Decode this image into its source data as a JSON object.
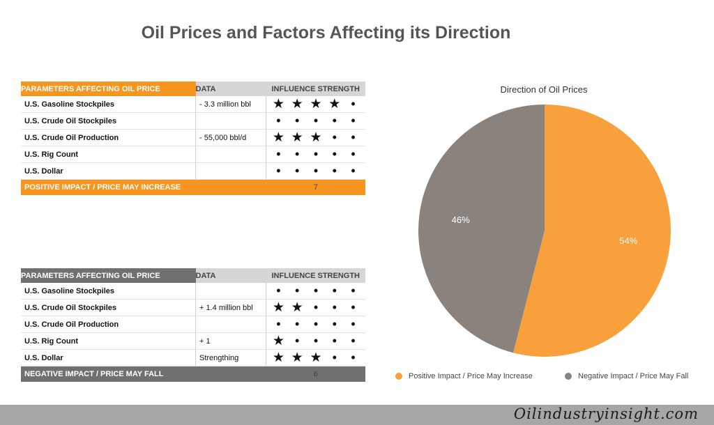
{
  "title": "Oil Prices and Factors Affecting its Direction",
  "positive_table": {
    "headers": [
      "PARAMETERS AFFECTING OIL PRICE",
      "DATA",
      "INFLUENCE STRENGTH"
    ],
    "rows": [
      {
        "param": "U.S. Gasoline Stockpiles",
        "data": "- 3.3 million bbl",
        "strength": 4
      },
      {
        "param": "U.S. Crude Oil Stockpiles",
        "data": "",
        "strength": 0
      },
      {
        "param": "U.S. Crude Oil Production",
        "data": "- 55,000 bbl/d",
        "strength": 3
      },
      {
        "param": "U.S. Rig Count",
        "data": "",
        "strength": 0
      },
      {
        "param": "U.S. Dollar",
        "data": "",
        "strength": 0
      }
    ],
    "footer_label": "POSITIVE IMPACT / PRICE MAY INCREASE",
    "footer_total": "7"
  },
  "negative_table": {
    "headers": [
      "PARAMETERS AFFECTING OIL PRICE",
      "DATA",
      "INFLUENCE STRENGTH"
    ],
    "rows": [
      {
        "param": "U.S. Gasoline Stockpiles",
        "data": "",
        "strength": 0
      },
      {
        "param": "U.S. Crude Oil Stockpiles",
        "data": "+ 1.4 million bbl",
        "strength": 2
      },
      {
        "param": "U.S. Crude Oil Production",
        "data": "",
        "strength": 0
      },
      {
        "param": "U.S. Rig Count",
        "data": "+ 1",
        "strength": 1
      },
      {
        "param": "U.S. Dollar",
        "data": "Strengthing",
        "strength": 3
      }
    ],
    "footer_label": "NEGATIVE IMPACT / PRICE MAY FALL",
    "footer_total": "6"
  },
  "chart_data": {
    "type": "pie",
    "title": "Direction of Oil Prices",
    "slices": [
      {
        "name": "Positive Impact / Price May Increase",
        "value": 54,
        "label": "54%",
        "color": "#f8a03c"
      },
      {
        "name": "Negative Impact / Price May Fall",
        "value": 46,
        "label": "46%",
        "color": "#8a837d"
      }
    ],
    "legend": "bottom"
  },
  "brand": "Oilindustryinsight.com"
}
